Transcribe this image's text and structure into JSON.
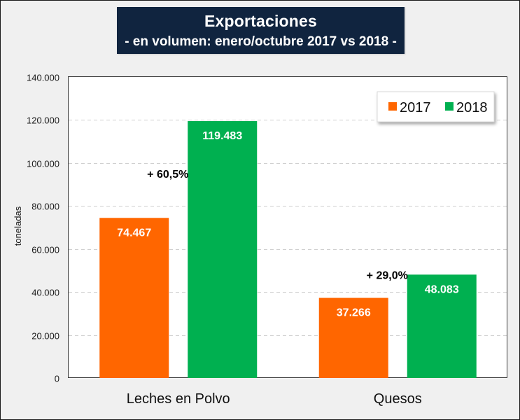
{
  "title": {
    "main": "Exportaciones",
    "subtitle": "- en volumen: enero/octubre 2017 vs 2018 -"
  },
  "chart_data": {
    "type": "bar",
    "title": "Exportaciones - en volumen: enero/octubre 2017 vs 2018 -",
    "xlabel": "",
    "ylabel": "toneladas",
    "ylim": [
      0,
      140000
    ],
    "yticks": [
      0,
      20000,
      40000,
      60000,
      80000,
      100000,
      120000,
      140000
    ],
    "ytick_labels": [
      "0",
      "20.000",
      "40.000",
      "60.000",
      "80.000",
      "100.000",
      "120.000",
      "140.000"
    ],
    "grid": "horizontal-dashed",
    "categories": [
      "Leches en Polvo",
      "Quesos"
    ],
    "series": [
      {
        "name": "2017",
        "color": "#ff6600",
        "values": [
          74467,
          37266
        ],
        "labels": [
          "74.467",
          "37.266"
        ]
      },
      {
        "name": "2018",
        "color": "#00b050",
        "values": [
          119483,
          48083
        ],
        "labels": [
          "119.483",
          "48.083"
        ]
      }
    ],
    "annotations": [
      "+ 60,5%",
      "+ 29,0%"
    ],
    "legend": {
      "position": "top-right",
      "entries": [
        "2017",
        "2018"
      ]
    }
  }
}
